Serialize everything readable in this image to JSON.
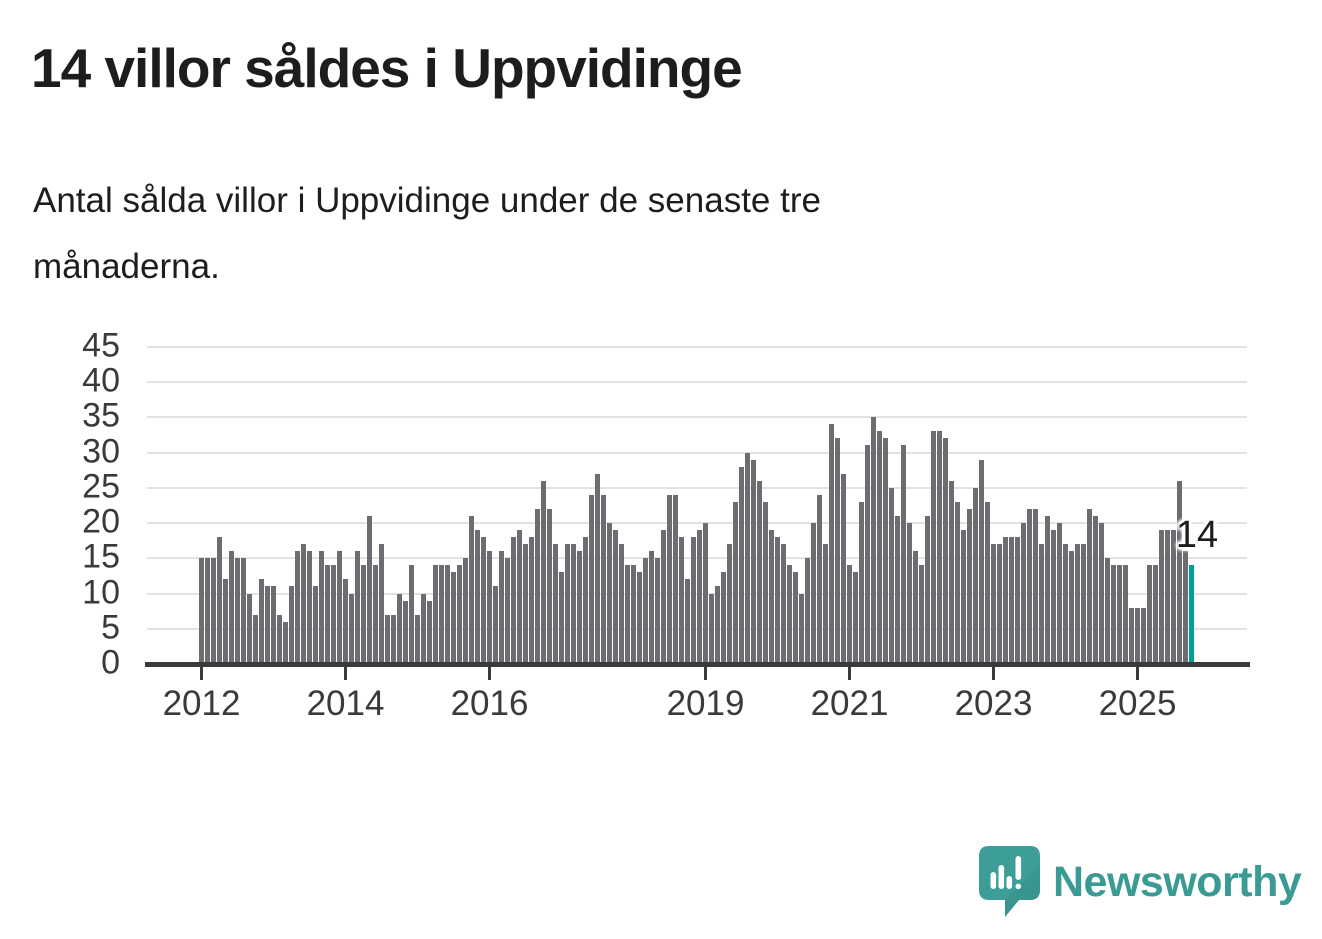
{
  "header": {
    "title": "14 villor såldes i Uppvidinge",
    "subtitle": "Antal sålda villor i Uppvidinge under de senaste tre\nmånaderna."
  },
  "chart_data": {
    "type": "bar",
    "title": "14 villor såldes i Uppvidinge",
    "xlabel": "",
    "ylabel": "",
    "ylim": [
      0,
      45
    ],
    "yticks": [
      0,
      5,
      10,
      15,
      20,
      25,
      30,
      35,
      40,
      45
    ],
    "grid": "horizontal",
    "xticks": [
      {
        "label": "2012",
        "month_index": 0
      },
      {
        "label": "2014",
        "month_index": 24
      },
      {
        "label": "2016",
        "month_index": 48
      },
      {
        "label": "2019",
        "month_index": 84
      },
      {
        "label": "2021",
        "month_index": 108
      },
      {
        "label": "2023",
        "month_index": 132
      },
      {
        "label": "2025",
        "month_index": 156
      }
    ],
    "series": [
      {
        "name": "Antal sålda villor",
        "start_month": "2012-01",
        "values": [
          15,
          15,
          15,
          18,
          12,
          16,
          15,
          15,
          10,
          7,
          12,
          11,
          11,
          7,
          6,
          11,
          16,
          17,
          16,
          11,
          16,
          14,
          14,
          16,
          12,
          10,
          16,
          14,
          21,
          14,
          17,
          7,
          7,
          10,
          9,
          14,
          7,
          10,
          9,
          14,
          14,
          14,
          13,
          14,
          15,
          21,
          19,
          18,
          16,
          11,
          16,
          15,
          18,
          19,
          17,
          18,
          22,
          26,
          22,
          17,
          13,
          17,
          17,
          16,
          18,
          24,
          27,
          24,
          20,
          19,
          17,
          14,
          14,
          13,
          15,
          16,
          15,
          19,
          24,
          24,
          18,
          12,
          18,
          19,
          20,
          10,
          11,
          13,
          17,
          23,
          28,
          30,
          29,
          26,
          23,
          19,
          18,
          17,
          14,
          13,
          10,
          15,
          20,
          24,
          17,
          34,
          32,
          27,
          14,
          13,
          23,
          31,
          35,
          33,
          32,
          25,
          21,
          31,
          20,
          16,
          14,
          21,
          33,
          33,
          32,
          26,
          23,
          19,
          22,
          25,
          29,
          23,
          17,
          17,
          18,
          18,
          18,
          20,
          22,
          22,
          17,
          21,
          19,
          20,
          17,
          16,
          17,
          17,
          22,
          21,
          20,
          15,
          14,
          14,
          14,
          8,
          8,
          8,
          14,
          14,
          19,
          19,
          19,
          26,
          16,
          14
        ]
      }
    ],
    "highlight": {
      "index": 165,
      "value": 14,
      "label": "14"
    },
    "colors": {
      "bar": "#6c6c71",
      "highlight": "#00a09a",
      "gridline": "#e2e2e2",
      "axis": "#3a3a3a",
      "text": "#1d1d1b"
    },
    "legend": "none"
  },
  "footer": {
    "brand": "Newsworthy",
    "logo_icon": "newsworthy-speech-bubble-chart-icon",
    "brand_color": "#3a9a94"
  }
}
